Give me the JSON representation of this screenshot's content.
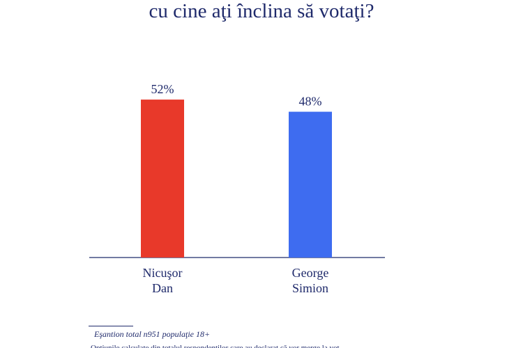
{
  "chart_data": {
    "type": "bar",
    "title": "cu cine aţi înclina să votaţi?",
    "categories": [
      [
        "Nicuşor",
        "Dan"
      ],
      [
        "George",
        "Simion"
      ]
    ],
    "values": [
      52,
      48
    ],
    "value_labels": [
      "52%",
      "48%"
    ],
    "colors": [
      "#e8392a",
      "#3e6cf0"
    ],
    "xlabel": "",
    "ylabel": "",
    "ylim": [
      0,
      55
    ],
    "grid": false,
    "legend": "none",
    "axis_color": "#1f2a6b"
  },
  "footnote": "Eşantion total n951 populaţie 18+",
  "footnote_cut": "Opțiunile calculate din totalul respondenților care au declarat că vor merge la vot"
}
